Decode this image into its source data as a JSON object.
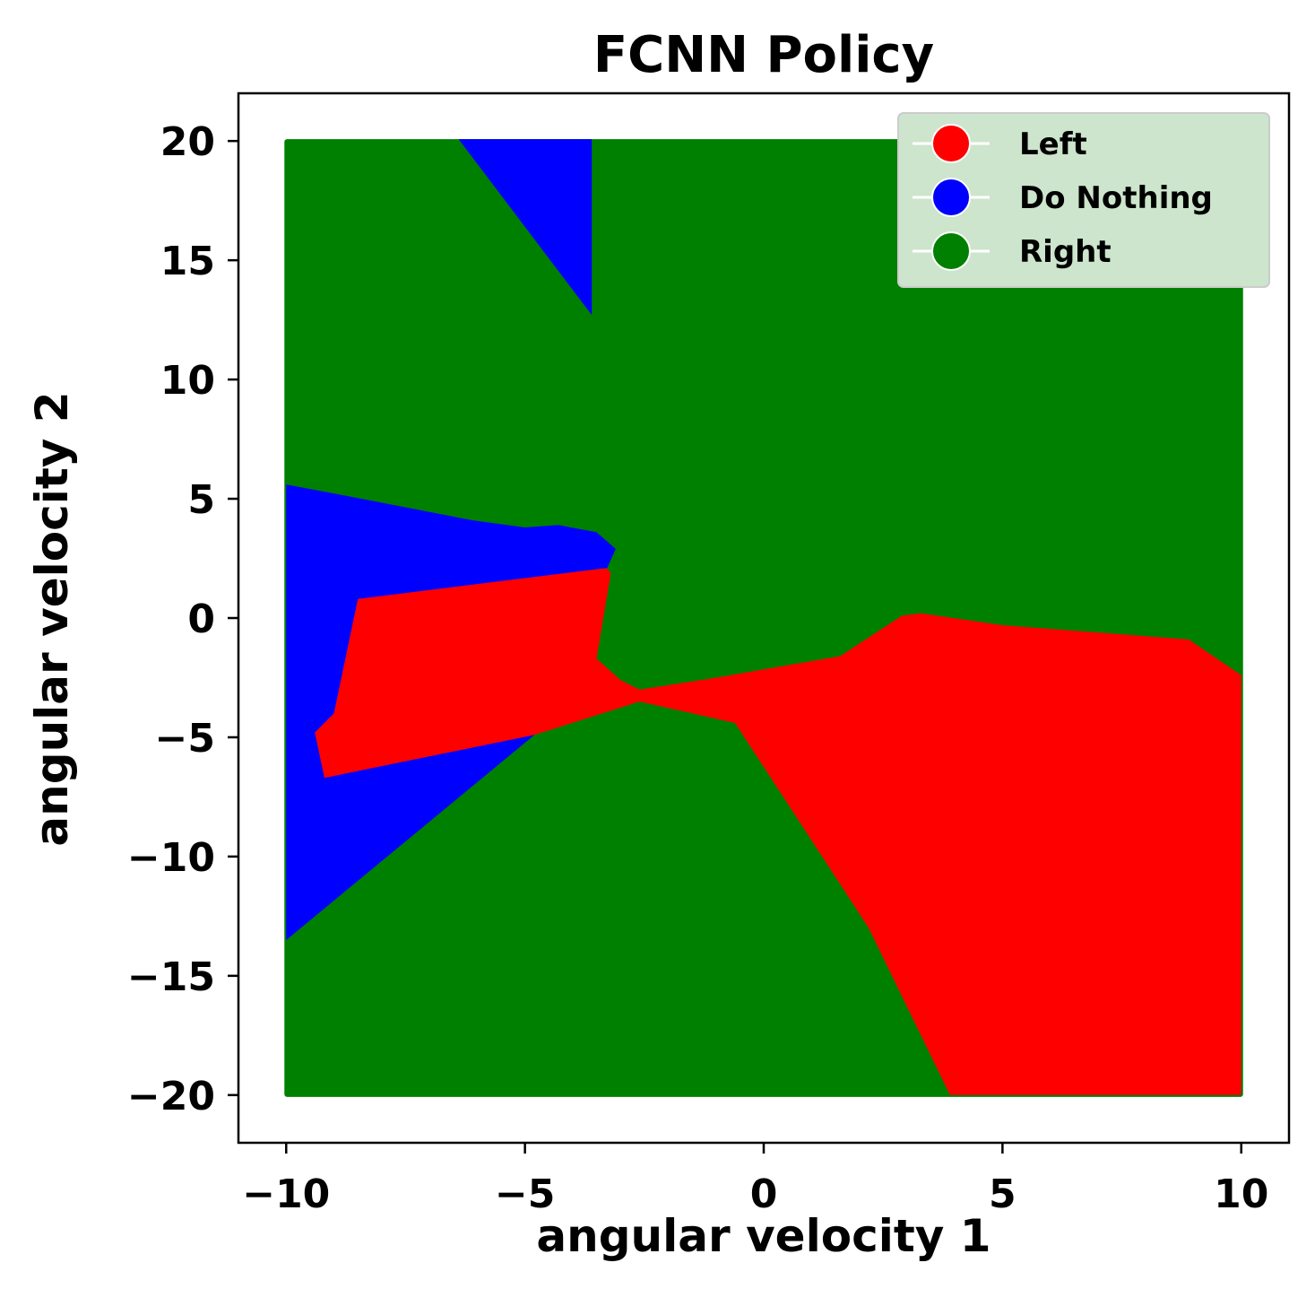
{
  "chart_data": {
    "type": "scatter",
    "title": "FCNN Policy",
    "xlabel": "angular velocity 1",
    "ylabel": "angular velocity 2",
    "xlim": [
      -11,
      11
    ],
    "ylim": [
      -22,
      22
    ],
    "xticks": [
      -10,
      -5,
      0,
      5,
      10
    ],
    "xtick_labels": [
      "−10",
      "−5",
      "0",
      "5",
      "10"
    ],
    "yticks": [
      20,
      15,
      10,
      5,
      0,
      -5,
      -10,
      -15,
      -20
    ],
    "ytick_labels": [
      "20",
      "15",
      "10",
      "5",
      "0",
      "−5",
      "−10",
      "−15",
      "−20"
    ],
    "grid": false,
    "legend_position": "top-right",
    "domain": {
      "x": [
        -10,
        10
      ],
      "y": [
        -20,
        20
      ]
    },
    "series": [
      {
        "name": "Left",
        "color": "#ff0000"
      },
      {
        "name": "Do Nothing",
        "color": "#0000ff"
      },
      {
        "name": "Right",
        "color": "#008000"
      }
    ],
    "regions": [
      {
        "series": "Do Nothing",
        "polygons": [
          [
            [
              -6.4,
              20.1
            ],
            [
              -3.6,
              20.1
            ],
            [
              -3.6,
              12.7
            ]
          ],
          [
            [
              -10,
              5.6
            ],
            [
              -9.2,
              5.3
            ],
            [
              -6.1,
              4.1
            ],
            [
              -5.0,
              3.8
            ],
            [
              -4.3,
              3.9
            ],
            [
              -3.5,
              3.6
            ],
            [
              -3.1,
              2.9
            ],
            [
              -3.3,
              2.0
            ],
            [
              -4.8,
              -4.9
            ],
            [
              -10,
              -13.5
            ]
          ]
        ]
      },
      {
        "series": "Left",
        "polygons": [
          [
            [
              -8.5,
              0.8
            ],
            [
              -3.3,
              2.1
            ],
            [
              -3.2,
              1.9
            ],
            [
              -3.5,
              -1.7
            ],
            [
              -3.0,
              -2.6
            ],
            [
              -2.6,
              -3.0
            ],
            [
              -1.0,
              -2.5
            ],
            [
              1.6,
              -1.6
            ],
            [
              2.9,
              0.1
            ],
            [
              3.3,
              0.2
            ],
            [
              5.0,
              -0.3
            ],
            [
              8.9,
              -0.9
            ],
            [
              10,
              -2.4
            ],
            [
              10,
              -20
            ],
            [
              3.9,
              -20
            ],
            [
              2.2,
              -13.0
            ],
            [
              -0.6,
              -4.4
            ],
            [
              -2.6,
              -3.5
            ],
            [
              -4.8,
              -4.9
            ],
            [
              -9.2,
              -6.7
            ],
            [
              -9.4,
              -4.8
            ],
            [
              -9.0,
              -4.0
            ]
          ]
        ]
      }
    ]
  }
}
